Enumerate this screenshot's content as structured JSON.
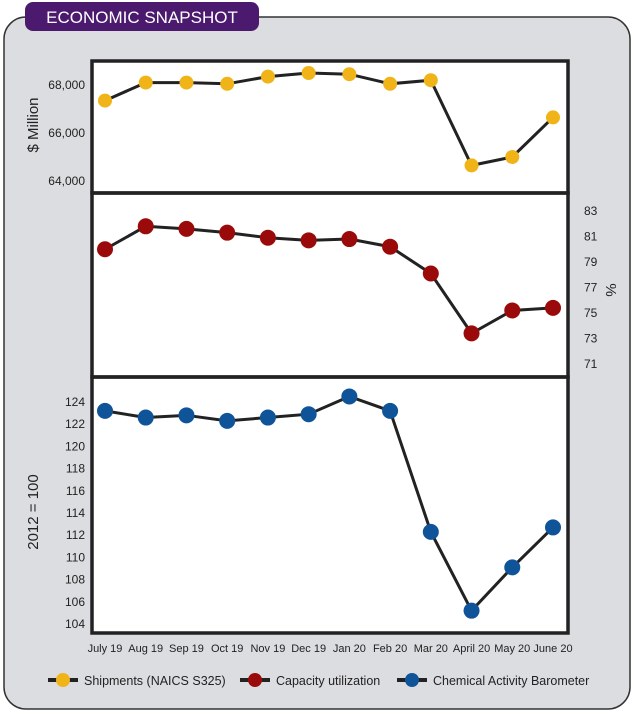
{
  "title": "ECONOMIC SNAPSHOT",
  "colors": {
    "title_bg": "#4b1a6e",
    "panel_bg": "#dcdde0",
    "shipments": "#f0b418",
    "capacity": "#9b0a0a",
    "cab": "#0f5499",
    "line": "#222222"
  },
  "chart_data": [
    {
      "type": "line",
      "ylabel": "$ Million",
      "yticks": [
        "68,000",
        "66,000",
        "64,000"
      ],
      "ytick_values": [
        68000,
        66000,
        64000
      ],
      "categories": [
        "July 19",
        "Aug 19",
        "Sep 19",
        "Oct 19",
        "Nov 19",
        "Dec 19",
        "Jan 20",
        "Feb 20",
        "Mar 20",
        "April 20",
        "May 20",
        "June 20"
      ],
      "series": [
        {
          "name": "Shipments (NAICS S325)",
          "values": [
            67350,
            68100,
            68100,
            68050,
            68350,
            68500,
            68450,
            68050,
            68200,
            64650,
            65000,
            66650
          ]
        }
      ]
    },
    {
      "type": "line",
      "ylabel": "%",
      "yticks": [
        "83",
        "81",
        "79",
        "77",
        "75",
        "73",
        "71"
      ],
      "ytick_values": [
        83,
        81,
        79,
        77,
        75,
        73,
        71
      ],
      "categories": [
        "July 19",
        "Aug 19",
        "Sep 19",
        "Oct 19",
        "Nov 19",
        "Dec 19",
        "Jan 20",
        "Feb 20",
        "Mar 20",
        "April 20",
        "May 20",
        "June 20"
      ],
      "series": [
        {
          "name": "Capacity utilization",
          "values": [
            80.0,
            81.8,
            81.6,
            81.3,
            80.9,
            80.7,
            80.8,
            80.2,
            78.1,
            73.4,
            75.2,
            75.4
          ]
        }
      ]
    },
    {
      "type": "line",
      "ylabel": "2012 = 100",
      "yticks": [
        "124",
        "122",
        "120",
        "118",
        "116",
        "114",
        "112",
        "110",
        "108",
        "106",
        "104"
      ],
      "ytick_values": [
        124,
        122,
        120,
        118,
        116,
        114,
        112,
        110,
        108,
        106,
        104
      ],
      "categories": [
        "July 19",
        "Aug 19",
        "Sep 19",
        "Oct 19",
        "Nov 19",
        "Dec 19",
        "Jan 20",
        "Feb 20",
        "Mar 20",
        "April 20",
        "May 20",
        "June 20"
      ],
      "series": [
        {
          "name": "Chemical Activity Barometer",
          "values": [
            123.2,
            122.6,
            122.8,
            122.3,
            122.6,
            122.9,
            124.5,
            123.2,
            112.3,
            105.2,
            109.1,
            112.7
          ]
        }
      ]
    }
  ],
  "legend": [
    "Shipments (NAICS S325)",
    "Capacity utilization",
    "Chemical Activity Barometer"
  ]
}
